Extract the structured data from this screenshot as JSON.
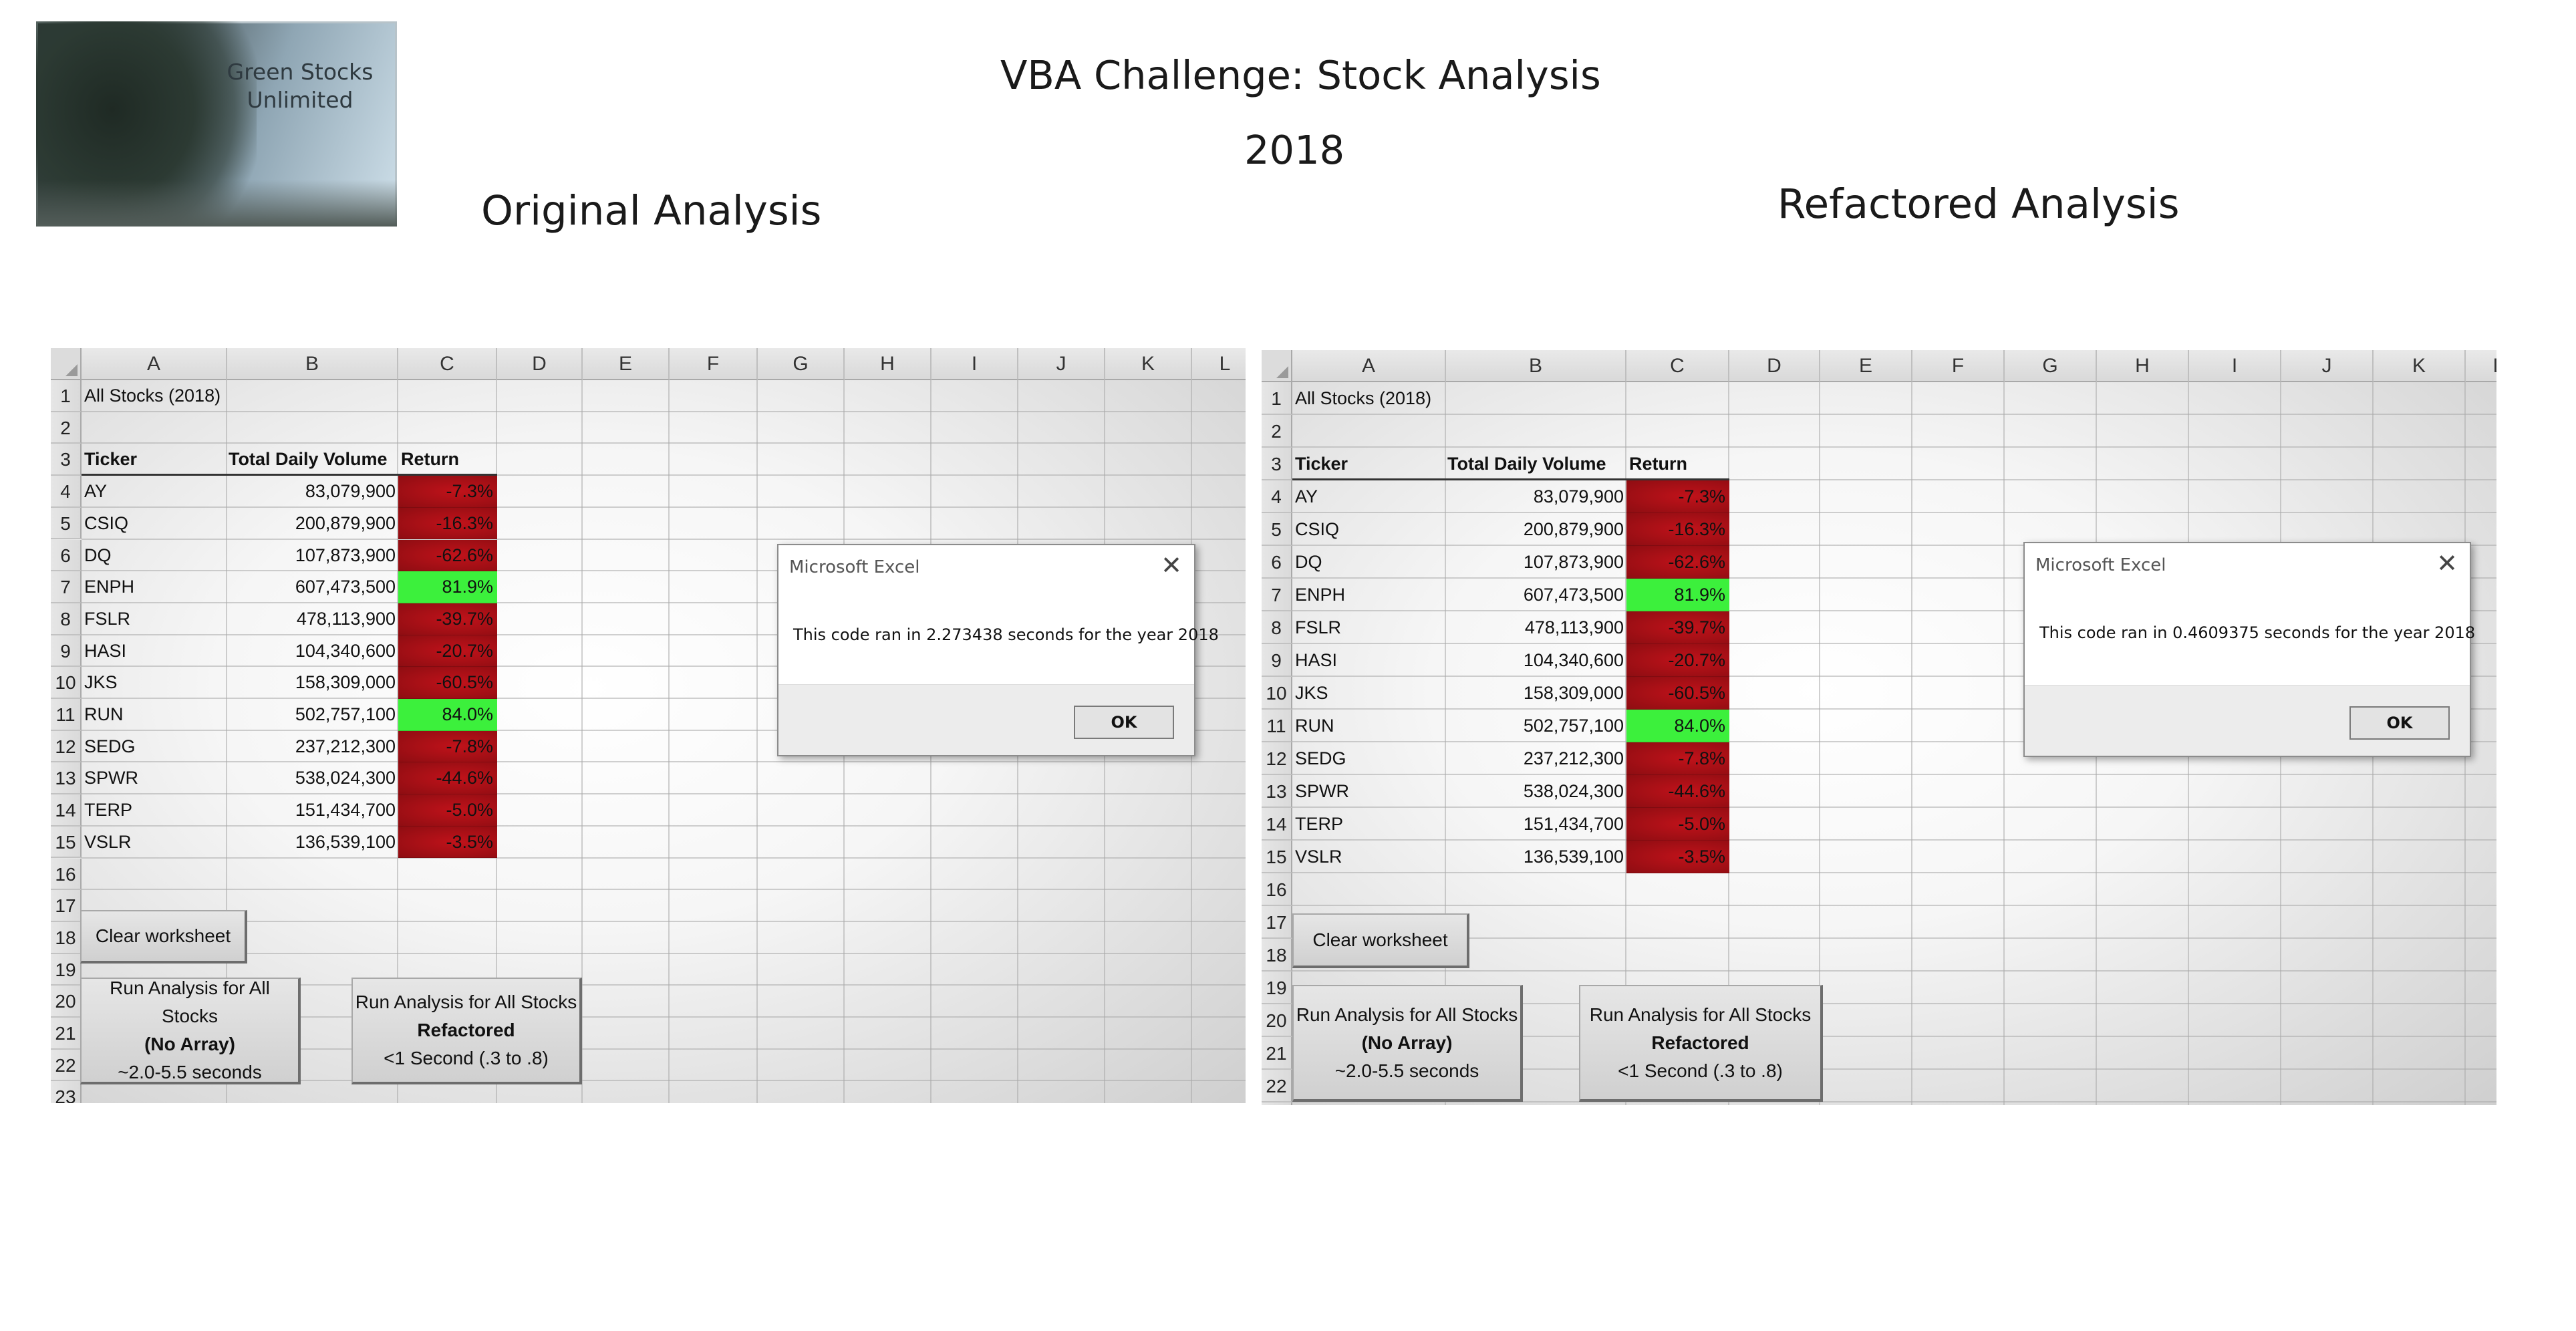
{
  "logo": {
    "caption_line1": "Green Stocks",
    "caption_line2": "Unlimited"
  },
  "headline": {
    "title": "VBA Challenge: Stock Analysis",
    "year": "2018"
  },
  "panels": {
    "left_title": "Original Analysis",
    "right_title": "Refactored Analysis"
  },
  "colors": {
    "negative": "#c0121a",
    "positive": "#3cf03c"
  },
  "sheet": {
    "columns": [
      "A",
      "B",
      "C",
      "D",
      "E",
      "F",
      "G",
      "H",
      "I",
      "J",
      "K",
      "L"
    ],
    "row_numbers": [
      "1",
      "2",
      "3",
      "4",
      "5",
      "6",
      "7",
      "8",
      "9",
      "10",
      "11",
      "12",
      "13",
      "14",
      "15",
      "16",
      "17",
      "18",
      "19",
      "20",
      "21",
      "22",
      "23"
    ],
    "a1": "All Stocks (2018)",
    "headers": {
      "ticker": "Ticker",
      "volume": "Total Daily Volume",
      "return": "Return"
    },
    "rows": [
      {
        "ticker": "AY",
        "volume": "83,079,900",
        "return": "-7.3%",
        "positive": false
      },
      {
        "ticker": "CSIQ",
        "volume": "200,879,900",
        "return": "-16.3%",
        "positive": false
      },
      {
        "ticker": "DQ",
        "volume": "107,873,900",
        "return": "-62.6%",
        "positive": false
      },
      {
        "ticker": "ENPH",
        "volume": "607,473,500",
        "return": "81.9%",
        "positive": true
      },
      {
        "ticker": "FSLR",
        "volume": "478,113,900",
        "return": "-39.7%",
        "positive": false
      },
      {
        "ticker": "HASI",
        "volume": "104,340,600",
        "return": "-20.7%",
        "positive": false
      },
      {
        "ticker": "JKS",
        "volume": "158,309,000",
        "return": "-60.5%",
        "positive": false
      },
      {
        "ticker": "RUN",
        "volume": "502,757,100",
        "return": "84.0%",
        "positive": true
      },
      {
        "ticker": "SEDG",
        "volume": "237,212,300",
        "return": "-7.8%",
        "positive": false
      },
      {
        "ticker": "SPWR",
        "volume": "538,024,300",
        "return": "-44.6%",
        "positive": false
      },
      {
        "ticker": "TERP",
        "volume": "151,434,700",
        "return": "-5.0%",
        "positive": false
      },
      {
        "ticker": "VSLR",
        "volume": "136,539,100",
        "return": "-3.5%",
        "positive": false
      }
    ],
    "buttons": {
      "clear": "Clear worksheet",
      "run_no_array": {
        "line1": "Run Analysis for All Stocks",
        "line2": "(No Array)",
        "line3": "~2.0-5.5 seconds"
      },
      "run_refactored": {
        "line1": "Run Analysis for All Stocks",
        "line2": "Refactored",
        "line3": "<1 Second (.3 to .8)"
      }
    }
  },
  "dialogs": {
    "left": {
      "title": "Microsoft Excel",
      "message": "This code ran in 2.273438 seconds for the year 2018",
      "ok": "OK",
      "close": "✕"
    },
    "right": {
      "title": "Microsoft Excel",
      "message": "This code ran in 0.4609375 seconds for the year 2018",
      "ok": "OK",
      "close": "✕"
    }
  }
}
